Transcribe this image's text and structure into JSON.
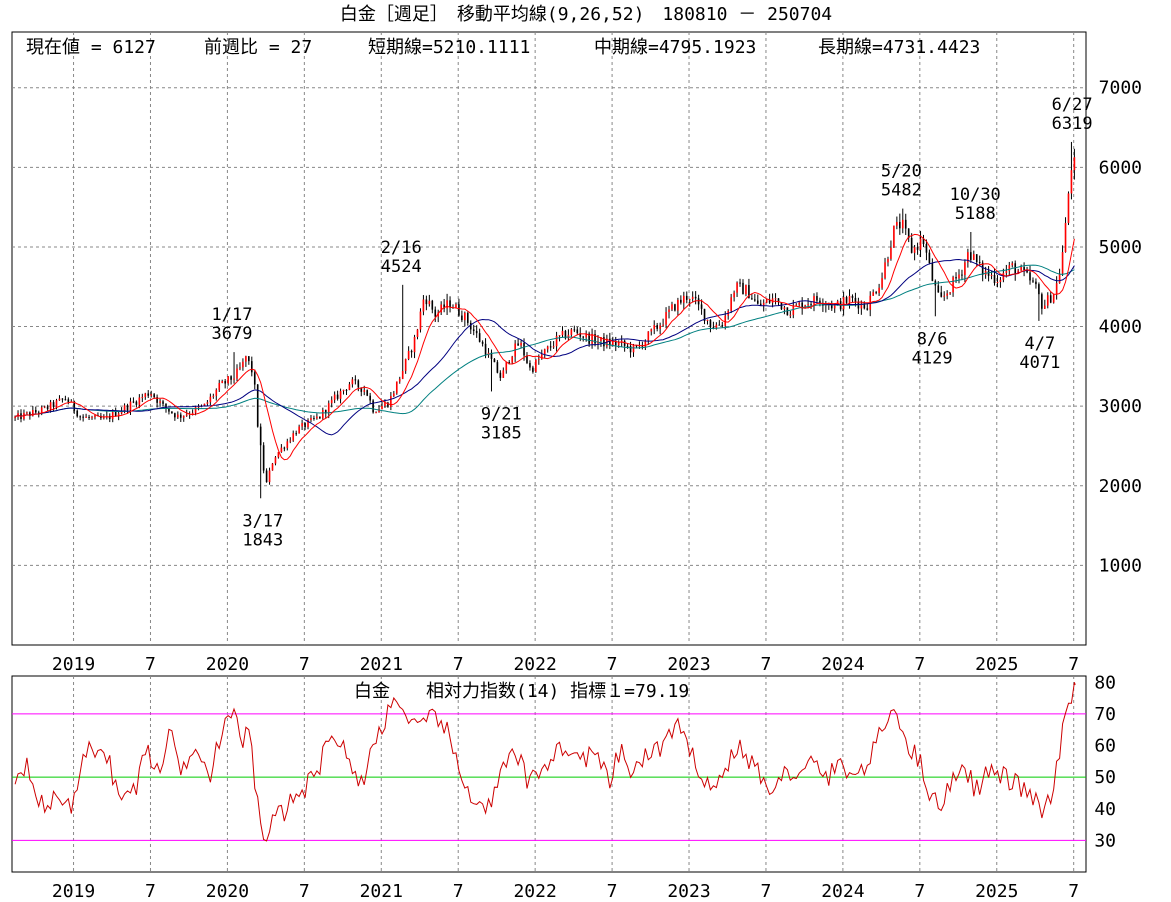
{
  "title": "白金［週足］　移動平均線(9,26,52)　180810 － 250704",
  "summary": {
    "current": "現在値 = 6127",
    "change": "前週比 = 27",
    "short_ma": "短期線=5210.1111",
    "mid_ma": "中期線=4795.1923",
    "long_ma": "長期線=4731.4423"
  },
  "rsi_caption": "白金　　相対力指数(14) 指標１=79.19",
  "colors": {
    "candle_up": "#ff0000",
    "candle_down": "#000000",
    "short_ma": "#ff0000",
    "mid_ma": "#000080",
    "long_ma": "#008080",
    "rsi_line": "#cc0000",
    "rsi_band": "#ff00ff",
    "rsi_mid": "#00cc00",
    "grid": "#888888"
  },
  "chart_data": [
    {
      "type": "candlestick",
      "period": "weekly",
      "moving_averages": [
        9,
        26,
        52
      ],
      "ylim": [
        0,
        7000
      ],
      "yticks": [
        1000,
        2000,
        3000,
        4000,
        5000,
        6000,
        7000
      ],
      "grid": true,
      "xticks": [
        "2019",
        "7",
        "2020",
        "7",
        "2021",
        "7",
        "2022",
        "7",
        "2023",
        "7",
        "2024",
        "7",
        "2025",
        "7"
      ],
      "anchors": [
        {
          "t": 2018.62,
          "v": 2850
        },
        {
          "t": 2018.8,
          "v": 2950
        },
        {
          "t": 2018.95,
          "v": 3100
        },
        {
          "t": 2019.05,
          "v": 2860
        },
        {
          "t": 2019.2,
          "v": 2830
        },
        {
          "t": 2019.35,
          "v": 3000
        },
        {
          "t": 2019.5,
          "v": 3180
        },
        {
          "t": 2019.58,
          "v": 3000
        },
        {
          "t": 2019.68,
          "v": 2870
        },
        {
          "t": 2019.85,
          "v": 3000
        },
        {
          "t": 2019.95,
          "v": 3250
        },
        {
          "t": 2020.05,
          "v": 3380
        },
        {
          "t": 2020.1,
          "v": 3520
        },
        {
          "t": 2020.12,
          "v": 3620
        },
        {
          "t": 2020.17,
          "v": 3400
        },
        {
          "t": 2020.2,
          "v": 2700
        },
        {
          "t": 2020.25,
          "v": 2000
        },
        {
          "t": 2020.3,
          "v": 2350
        },
        {
          "t": 2020.45,
          "v": 2700
        },
        {
          "t": 2020.6,
          "v": 2870
        },
        {
          "t": 2020.7,
          "v": 3100
        },
        {
          "t": 2020.8,
          "v": 3300
        },
        {
          "t": 2020.9,
          "v": 3200
        },
        {
          "t": 2020.95,
          "v": 2950
        },
        {
          "t": 2021.05,
          "v": 3050
        },
        {
          "t": 2021.15,
          "v": 3500
        },
        {
          "t": 2021.22,
          "v": 3850
        },
        {
          "t": 2021.28,
          "v": 4400
        },
        {
          "t": 2021.35,
          "v": 4150
        },
        {
          "t": 2021.45,
          "v": 4300
        },
        {
          "t": 2021.55,
          "v": 4100
        },
        {
          "t": 2021.65,
          "v": 3800
        },
        {
          "t": 2021.72,
          "v": 3550
        },
        {
          "t": 2021.78,
          "v": 3350
        },
        {
          "t": 2021.84,
          "v": 3650
        },
        {
          "t": 2021.9,
          "v": 3800
        },
        {
          "t": 2021.97,
          "v": 3450
        },
        {
          "t": 2022.05,
          "v": 3650
        },
        {
          "t": 2022.15,
          "v": 3850
        },
        {
          "t": 2022.25,
          "v": 3950
        },
        {
          "t": 2022.35,
          "v": 3850
        },
        {
          "t": 2022.45,
          "v": 3800
        },
        {
          "t": 2022.55,
          "v": 3780
        },
        {
          "t": 2022.65,
          "v": 3700
        },
        {
          "t": 2022.72,
          "v": 3850
        },
        {
          "t": 2022.82,
          "v": 4050
        },
        {
          "t": 2022.9,
          "v": 4250
        },
        {
          "t": 2023.0,
          "v": 4400
        },
        {
          "t": 2023.08,
          "v": 4200
        },
        {
          "t": 2023.15,
          "v": 4000
        },
        {
          "t": 2023.22,
          "v": 4050
        },
        {
          "t": 2023.3,
          "v": 4500
        },
        {
          "t": 2023.38,
          "v": 4450
        },
        {
          "t": 2023.45,
          "v": 4250
        },
        {
          "t": 2023.55,
          "v": 4350
        },
        {
          "t": 2023.65,
          "v": 4200
        },
        {
          "t": 2023.75,
          "v": 4300
        },
        {
          "t": 2023.85,
          "v": 4350
        },
        {
          "t": 2023.95,
          "v": 4250
        },
        {
          "t": 2024.05,
          "v": 4350
        },
        {
          "t": 2024.15,
          "v": 4250
        },
        {
          "t": 2024.25,
          "v": 4600
        },
        {
          "t": 2024.33,
          "v": 5200
        },
        {
          "t": 2024.38,
          "v": 5300
        },
        {
          "t": 2024.45,
          "v": 4950
        },
        {
          "t": 2024.52,
          "v": 5100
        },
        {
          "t": 2024.58,
          "v": 4600
        },
        {
          "t": 2024.63,
          "v": 4300
        },
        {
          "t": 2024.7,
          "v": 4500
        },
        {
          "t": 2024.77,
          "v": 4700
        },
        {
          "t": 2024.82,
          "v": 4950
        },
        {
          "t": 2024.9,
          "v": 4700
        },
        {
          "t": 2025.0,
          "v": 4600
        },
        {
          "t": 2025.1,
          "v": 4750
        },
        {
          "t": 2025.18,
          "v": 4650
        },
        {
          "t": 2025.25,
          "v": 4500
        },
        {
          "t": 2025.3,
          "v": 4250
        },
        {
          "t": 2025.38,
          "v": 4450
        },
        {
          "t": 2025.42,
          "v": 4800
        },
        {
          "t": 2025.45,
          "v": 5300
        },
        {
          "t": 2025.48,
          "v": 6000
        },
        {
          "t": 2025.51,
          "v": 6127
        }
      ],
      "annotations": [
        {
          "date": "1/17",
          "value": "3679"
        },
        {
          "date": "3/17",
          "value": "1843"
        },
        {
          "date": "2/16",
          "value": "4524"
        },
        {
          "date": "9/21",
          "value": "3185"
        },
        {
          "date": "5/20",
          "value": "5482"
        },
        {
          "date": "8/6",
          "value": "4129"
        },
        {
          "date": "10/30",
          "value": "5188"
        },
        {
          "date": "4/7",
          "value": "4071"
        },
        {
          "date": "6/27",
          "value": "6319"
        }
      ]
    },
    {
      "type": "line",
      "name": "相対力指数(14)",
      "ylim": [
        20,
        82
      ],
      "yticks": [
        30,
        40,
        50,
        60,
        70,
        80
      ],
      "reference_lines": [
        30,
        50,
        70
      ],
      "last_value": 79.19,
      "anchors": [
        {
          "t": 2018.62,
          "v": 50
        },
        {
          "t": 2018.7,
          "v": 55
        },
        {
          "t": 2018.8,
          "v": 40
        },
        {
          "t": 2018.92,
          "v": 44
        },
        {
          "t": 2019.0,
          "v": 41
        },
        {
          "t": 2019.08,
          "v": 58
        },
        {
          "t": 2019.2,
          "v": 60
        },
        {
          "t": 2019.3,
          "v": 43
        },
        {
          "t": 2019.4,
          "v": 46
        },
        {
          "t": 2019.48,
          "v": 60
        },
        {
          "t": 2019.55,
          "v": 50
        },
        {
          "t": 2019.62,
          "v": 65
        },
        {
          "t": 2019.7,
          "v": 52
        },
        {
          "t": 2019.8,
          "v": 62
        },
        {
          "t": 2019.88,
          "v": 50
        },
        {
          "t": 2019.95,
          "v": 62
        },
        {
          "t": 2020.03,
          "v": 70
        },
        {
          "t": 2020.1,
          "v": 62
        },
        {
          "t": 2020.14,
          "v": 66
        },
        {
          "t": 2020.18,
          "v": 48
        },
        {
          "t": 2020.23,
          "v": 28
        },
        {
          "t": 2020.28,
          "v": 35
        },
        {
          "t": 2020.38,
          "v": 40
        },
        {
          "t": 2020.48,
          "v": 46
        },
        {
          "t": 2020.58,
          "v": 50
        },
        {
          "t": 2020.66,
          "v": 65
        },
        {
          "t": 2020.74,
          "v": 60
        },
        {
          "t": 2020.8,
          "v": 54
        },
        {
          "t": 2020.88,
          "v": 48
        },
        {
          "t": 2020.95,
          "v": 60
        },
        {
          "t": 2021.05,
          "v": 72
        },
        {
          "t": 2021.12,
          "v": 75
        },
        {
          "t": 2021.18,
          "v": 65
        },
        {
          "t": 2021.28,
          "v": 66
        },
        {
          "t": 2021.36,
          "v": 70
        },
        {
          "t": 2021.45,
          "v": 62
        },
        {
          "t": 2021.52,
          "v": 48
        },
        {
          "t": 2021.6,
          "v": 44
        },
        {
          "t": 2021.7,
          "v": 40
        },
        {
          "t": 2021.8,
          "v": 53
        },
        {
          "t": 2021.88,
          "v": 58
        },
        {
          "t": 2021.95,
          "v": 48
        },
        {
          "t": 2022.02,
          "v": 52
        },
        {
          "t": 2022.1,
          "v": 56
        },
        {
          "t": 2022.18,
          "v": 60
        },
        {
          "t": 2022.28,
          "v": 55
        },
        {
          "t": 2022.38,
          "v": 58
        },
        {
          "t": 2022.48,
          "v": 48
        },
        {
          "t": 2022.55,
          "v": 58
        },
        {
          "t": 2022.62,
          "v": 52
        },
        {
          "t": 2022.72,
          "v": 56
        },
        {
          "t": 2022.82,
          "v": 60
        },
        {
          "t": 2022.92,
          "v": 66
        },
        {
          "t": 2023.0,
          "v": 58
        },
        {
          "t": 2023.08,
          "v": 52
        },
        {
          "t": 2023.15,
          "v": 46
        },
        {
          "t": 2023.22,
          "v": 50
        },
        {
          "t": 2023.3,
          "v": 60
        },
        {
          "t": 2023.38,
          "v": 56
        },
        {
          "t": 2023.48,
          "v": 50
        },
        {
          "t": 2023.55,
          "v": 42
        },
        {
          "t": 2023.62,
          "v": 55
        },
        {
          "t": 2023.7,
          "v": 48
        },
        {
          "t": 2023.8,
          "v": 55
        },
        {
          "t": 2023.9,
          "v": 50
        },
        {
          "t": 2024.0,
          "v": 54
        },
        {
          "t": 2024.1,
          "v": 50
        },
        {
          "t": 2024.2,
          "v": 58
        },
        {
          "t": 2024.28,
          "v": 68
        },
        {
          "t": 2024.35,
          "v": 72
        },
        {
          "t": 2024.42,
          "v": 60
        },
        {
          "t": 2024.5,
          "v": 55
        },
        {
          "t": 2024.56,
          "v": 46
        },
        {
          "t": 2024.62,
          "v": 40
        },
        {
          "t": 2024.7,
          "v": 48
        },
        {
          "t": 2024.78,
          "v": 55
        },
        {
          "t": 2024.86,
          "v": 46
        },
        {
          "t": 2024.95,
          "v": 52
        },
        {
          "t": 2025.05,
          "v": 50
        },
        {
          "t": 2025.12,
          "v": 48
        },
        {
          "t": 2025.2,
          "v": 45
        },
        {
          "t": 2025.26,
          "v": 42
        },
        {
          "t": 2025.3,
          "v": 38
        },
        {
          "t": 2025.36,
          "v": 44
        },
        {
          "t": 2025.42,
          "v": 62
        },
        {
          "t": 2025.47,
          "v": 72
        },
        {
          "t": 2025.51,
          "v": 79.19
        }
      ]
    }
  ]
}
